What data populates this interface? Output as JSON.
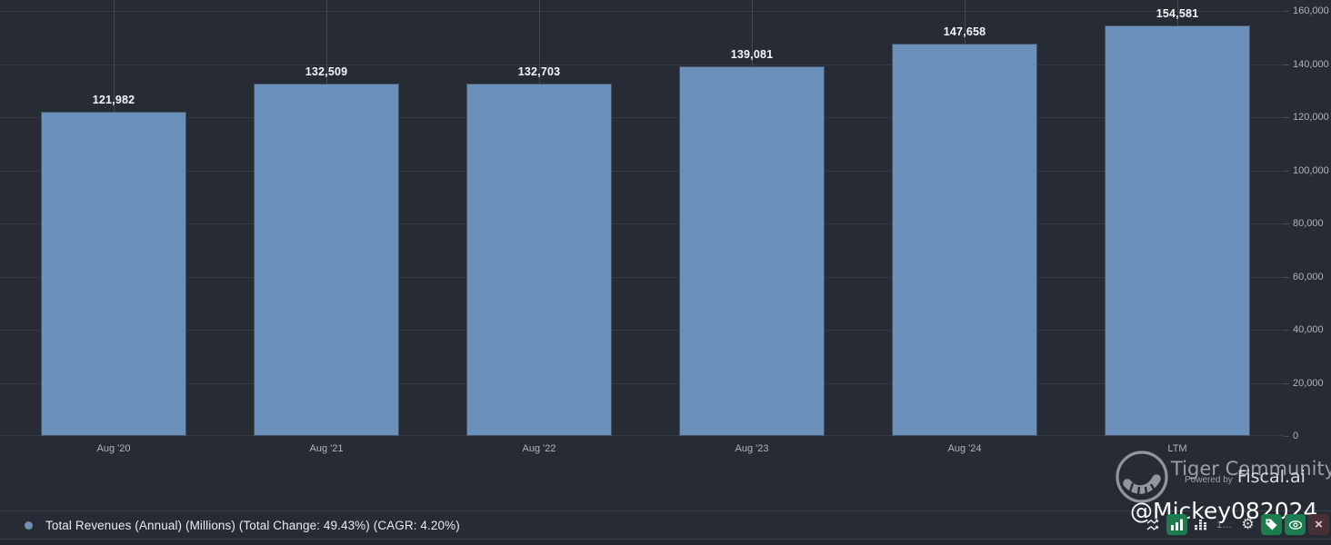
{
  "chart_data": {
    "type": "bar",
    "title": "",
    "series_name": "Total Revenues (Annual) (Millions)",
    "categories": [
      "Aug '20",
      "Aug '21",
      "Aug '22",
      "Aug '23",
      "Aug '24",
      "LTM"
    ],
    "values": [
      121982,
      132509,
      132703,
      139081,
      147658,
      154581
    ],
    "value_labels": [
      "121,982",
      "132,509",
      "132,703",
      "139,081",
      "147,658",
      "154,581"
    ],
    "ylim": [
      0,
      160000
    ],
    "ytick_step": 20000,
    "yticks": [
      "0",
      "20,000",
      "40,000",
      "60,000",
      "80,000",
      "100,000",
      "120,000",
      "140,000",
      "160,000"
    ],
    "grid": true,
    "legend_position": "bottom-left",
    "bar_color": "#6b90b9"
  },
  "legend": {
    "label": "Total Revenues (Annual) (Millions) (Total Change: 49.43%) (CAGR: 4.20%)",
    "dot_color": "#6d8fb8"
  },
  "watermark": {
    "community": "Tiger Community",
    "powered_by": "Powered by",
    "brand": "Fiscal.ai",
    "username": "@Mickey082024"
  },
  "toolbar": {
    "number_label": "1…",
    "gear_glyph": "⚙",
    "close_glyph": "×",
    "active_color": "#1b7c4e",
    "close_bg": "#453136",
    "icons": [
      "compare-waves-icon",
      "bar-chart-icon",
      "stacked-bars-icon",
      "number-format-icon",
      "gear-icon",
      "tag-icon",
      "eye-icon",
      "close-icon"
    ]
  }
}
